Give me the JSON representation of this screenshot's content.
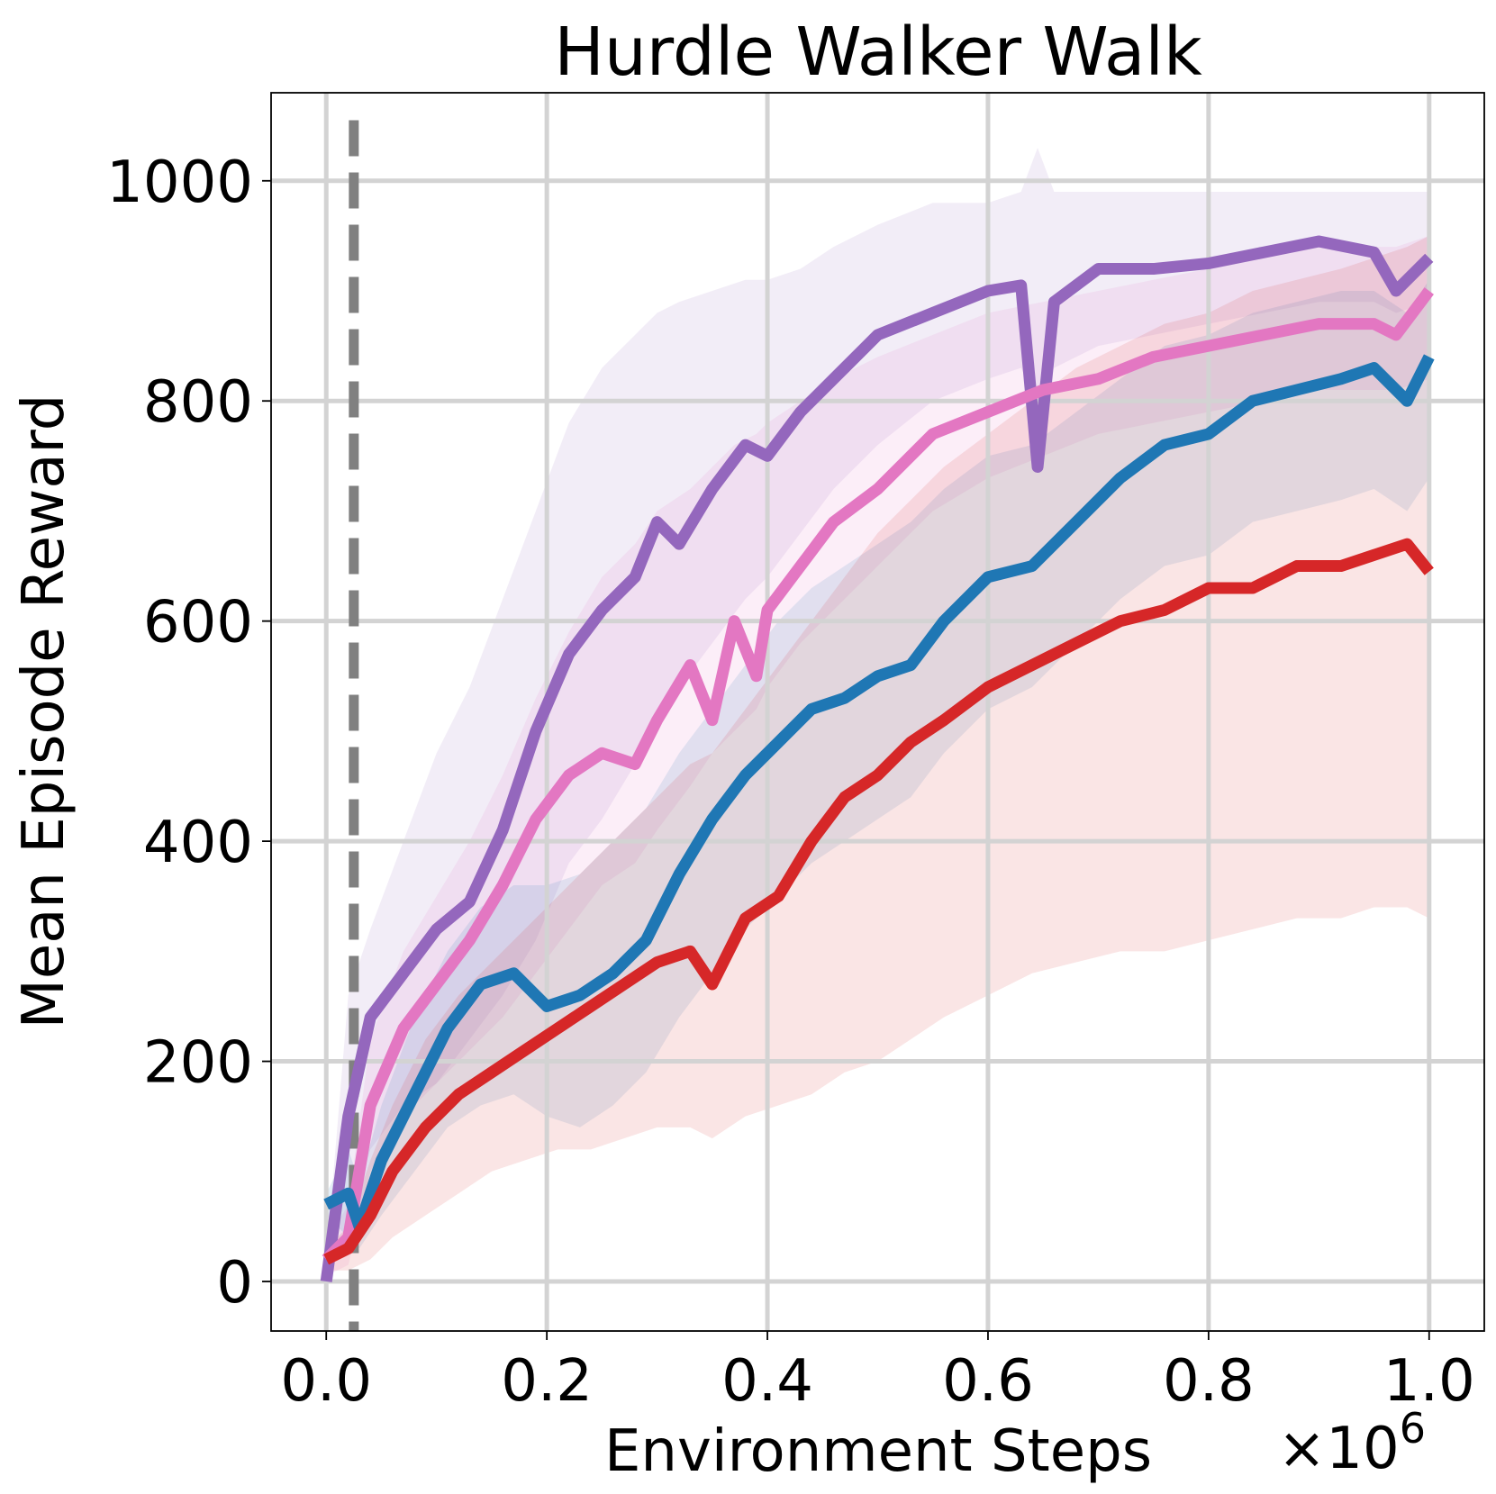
{
  "chart_data": {
    "type": "line",
    "title": "Hurdle Walker Walk",
    "xlabel": "Environment Steps",
    "ylabel": "Mean Episode Reward",
    "x_multiplier": "×10",
    "x_multiplier_exp": "6",
    "xlim": [
      -0.05,
      1.05
    ],
    "ylim": [
      -45,
      1080
    ],
    "xticks": [
      0.0,
      0.2,
      0.4,
      0.6,
      0.8,
      1.0
    ],
    "xtick_labels": [
      "0.0",
      "0.2",
      "0.4",
      "0.6",
      "0.8",
      "1.0"
    ],
    "yticks": [
      0,
      200,
      400,
      600,
      800,
      1000
    ],
    "ytick_labels": [
      "0",
      "200",
      "400",
      "600",
      "800",
      "1000"
    ],
    "grid": true,
    "vertical_marker_x": 0.025,
    "series": [
      {
        "color": "#9467bd",
        "x": [
          0.0,
          0.02,
          0.04,
          0.07,
          0.1,
          0.13,
          0.16,
          0.19,
          0.22,
          0.25,
          0.28,
          0.3,
          0.32,
          0.35,
          0.38,
          0.4,
          0.43,
          0.46,
          0.5,
          0.55,
          0.6,
          0.63,
          0.645,
          0.66,
          0.7,
          0.75,
          0.8,
          0.85,
          0.9,
          0.95,
          0.97,
          1.0
        ],
        "y": [
          0,
          150,
          240,
          280,
          320,
          345,
          410,
          500,
          570,
          610,
          640,
          690,
          670,
          720,
          760,
          750,
          790,
          820,
          860,
          880,
          900,
          905,
          740,
          890,
          920,
          920,
          925,
          935,
          945,
          935,
          900,
          930
        ],
        "lower": [
          0,
          50,
          120,
          160,
          180,
          220,
          260,
          310,
          380,
          420,
          470,
          510,
          540,
          580,
          620,
          640,
          680,
          720,
          760,
          800,
          820,
          830,
          800,
          830,
          850,
          860,
          870,
          880,
          890,
          890,
          880,
          890
        ],
        "upper": [
          20,
          260,
          320,
          400,
          480,
          540,
          620,
          700,
          780,
          830,
          860,
          880,
          890,
          900,
          910,
          910,
          920,
          940,
          960,
          980,
          980,
          990,
          1030,
          990,
          990,
          990,
          990,
          990,
          990,
          990,
          990,
          990
        ]
      },
      {
        "color": "#e377c2",
        "x": [
          0.0,
          0.02,
          0.04,
          0.07,
          0.1,
          0.13,
          0.16,
          0.19,
          0.22,
          0.25,
          0.28,
          0.3,
          0.33,
          0.35,
          0.37,
          0.39,
          0.4,
          0.43,
          0.46,
          0.5,
          0.55,
          0.6,
          0.65,
          0.7,
          0.75,
          0.8,
          0.85,
          0.9,
          0.95,
          0.97,
          1.0
        ],
        "y": [
          20,
          40,
          160,
          230,
          270,
          310,
          360,
          420,
          460,
          480,
          470,
          510,
          560,
          510,
          600,
          550,
          610,
          650,
          690,
          720,
          770,
          790,
          810,
          820,
          840,
          850,
          860,
          870,
          870,
          860,
          900
        ],
        "lower": [
          5,
          15,
          100,
          150,
          180,
          210,
          240,
          280,
          320,
          360,
          380,
          410,
          450,
          480,
          500,
          520,
          540,
          580,
          610,
          650,
          700,
          730,
          750,
          770,
          780,
          790,
          800,
          810,
          810,
          810,
          820
        ],
        "upper": [
          35,
          70,
          220,
          300,
          350,
          400,
          460,
          530,
          590,
          640,
          670,
          700,
          720,
          740,
          760,
          770,
          780,
          800,
          820,
          840,
          860,
          880,
          890,
          900,
          910,
          920,
          930,
          940,
          940,
          940,
          950
        ]
      },
      {
        "color": "#1f77b4",
        "x": [
          0.0,
          0.02,
          0.03,
          0.05,
          0.08,
          0.11,
          0.14,
          0.17,
          0.2,
          0.23,
          0.26,
          0.29,
          0.32,
          0.35,
          0.38,
          0.41,
          0.44,
          0.47,
          0.5,
          0.53,
          0.56,
          0.6,
          0.64,
          0.68,
          0.72,
          0.76,
          0.8,
          0.84,
          0.88,
          0.92,
          0.95,
          0.98,
          1.0
        ],
        "y": [
          70,
          80,
          50,
          110,
          170,
          230,
          270,
          280,
          250,
          260,
          280,
          310,
          370,
          420,
          460,
          490,
          520,
          530,
          550,
          560,
          600,
          640,
          650,
          690,
          730,
          760,
          770,
          800,
          810,
          820,
          830,
          800,
          840
        ],
        "lower": [
          60,
          40,
          30,
          60,
          100,
          140,
          160,
          170,
          150,
          140,
          160,
          190,
          240,
          280,
          320,
          350,
          380,
          400,
          420,
          440,
          480,
          520,
          540,
          580,
          620,
          650,
          660,
          690,
          700,
          710,
          720,
          700,
          730
        ],
        "upper": [
          80,
          120,
          90,
          160,
          240,
          300,
          340,
          360,
          360,
          370,
          400,
          430,
          480,
          520,
          560,
          600,
          630,
          650,
          670,
          690,
          720,
          750,
          760,
          790,
          820,
          850,
          860,
          880,
          890,
          900,
          900,
          880,
          910
        ]
      },
      {
        "color": "#d62728",
        "x": [
          0.0,
          0.02,
          0.04,
          0.06,
          0.09,
          0.12,
          0.15,
          0.18,
          0.21,
          0.24,
          0.27,
          0.3,
          0.33,
          0.35,
          0.38,
          0.41,
          0.44,
          0.47,
          0.5,
          0.53,
          0.56,
          0.6,
          0.64,
          0.68,
          0.72,
          0.76,
          0.8,
          0.84,
          0.88,
          0.92,
          0.95,
          0.98,
          1.0
        ],
        "y": [
          20,
          30,
          60,
          100,
          140,
          170,
          190,
          210,
          230,
          250,
          270,
          290,
          300,
          270,
          330,
          350,
          400,
          440,
          460,
          490,
          510,
          540,
          560,
          580,
          600,
          610,
          630,
          630,
          650,
          650,
          660,
          670,
          645
        ],
        "lower": [
          10,
          10,
          20,
          40,
          60,
          80,
          100,
          110,
          120,
          120,
          130,
          140,
          140,
          130,
          150,
          160,
          170,
          190,
          200,
          220,
          240,
          260,
          280,
          290,
          300,
          300,
          310,
          320,
          330,
          330,
          340,
          340,
          330
        ],
        "upper": [
          30,
          50,
          110,
          160,
          220,
          260,
          290,
          320,
          350,
          380,
          410,
          440,
          470,
          480,
          520,
          560,
          600,
          640,
          680,
          710,
          740,
          770,
          800,
          830,
          850,
          870,
          880,
          900,
          910,
          920,
          930,
          940,
          950
        ]
      }
    ]
  }
}
